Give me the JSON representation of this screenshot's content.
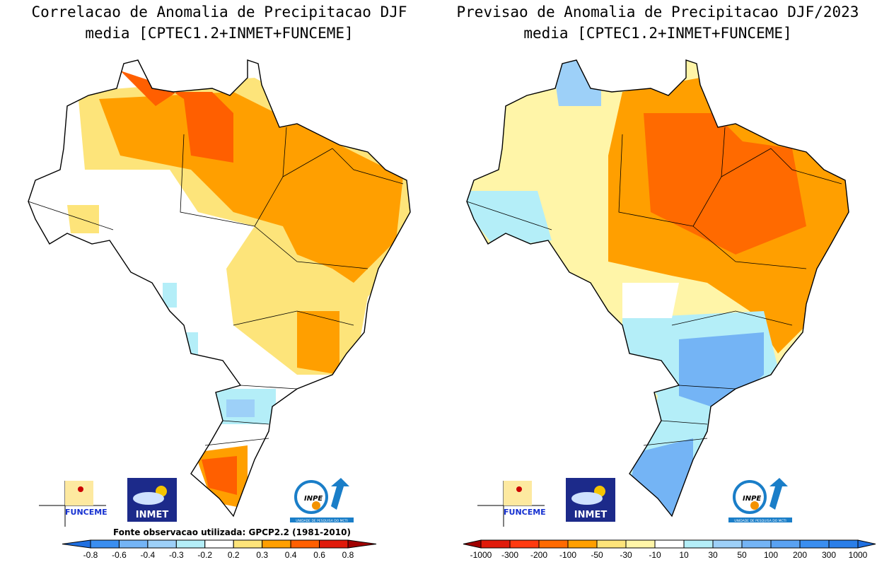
{
  "left_panel": {
    "title_line1": "Correlacao de Anomalia de Precipitacao DJF",
    "title_line2": "media [CPTEC1.2+INMET+FUNCEME]",
    "source_note": "Fonte observacao utilizada: GPCP2.2 (1981-2010)",
    "colorbar": {
      "labels": [
        "-0.8",
        "-0.6",
        "-0.4",
        "-0.3",
        "-0.2",
        "0.2",
        "0.3",
        "0.4",
        "0.6",
        "0.8"
      ],
      "colors": [
        "#1f6fe0",
        "#3a8ef0",
        "#74b4f5",
        "#9dd0f8",
        "#b4eef8",
        "#ffffff",
        "#fde47a",
        "#ff9f00",
        "#ff5f00",
        "#e01a0a",
        "#a00000"
      ]
    }
  },
  "right_panel": {
    "title_line1": "Previsao de Anomalia de Precipitacao DJF/2023",
    "title_line2": "media [CPTEC1.2+INMET+FUNCEME]",
    "colorbar": {
      "labels": [
        "-1000",
        "-300",
        "-200",
        "-100",
        "-50",
        "-30",
        "-10",
        "10",
        "30",
        "50",
        "100",
        "200",
        "300",
        "1000"
      ],
      "colors": [
        "#a00000",
        "#e01a0a",
        "#ff3a10",
        "#ff6a00",
        "#ff9f00",
        "#fde47a",
        "#fff5a8",
        "#ffffff",
        "#b4eef8",
        "#9dd0f8",
        "#74b4f5",
        "#5aa2f2",
        "#3a8ef0",
        "#2a7ee8",
        "#1f6fe0"
      ]
    }
  },
  "logos": {
    "funceme": "FUNCEME",
    "inmet": "INMET",
    "inpe": "INPE",
    "inpe_sub": "UNIDADE DE PESQUISA DO MCTI"
  }
}
